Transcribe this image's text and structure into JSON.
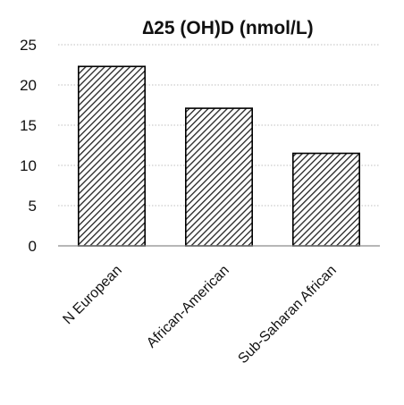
{
  "chart_data": {
    "type": "bar",
    "title": "∆25 (OH)D (nmol/L)",
    "xlabel": "",
    "ylabel": "",
    "categories": [
      "N European",
      "African-American",
      "Sub-Saharan African"
    ],
    "values": [
      22.3,
      17.1,
      11.5
    ],
    "ylim": [
      0,
      25
    ],
    "yticks": [
      "0",
      "5",
      "10",
      "15",
      "20",
      "25"
    ],
    "grid": true,
    "legend": "none",
    "bar_fill": "diagonal-hatch",
    "colors": {
      "bar_outline": "#000000",
      "hatch": "#222222",
      "grid": "#bfbfbf",
      "axis": "#8c8c8c"
    }
  }
}
